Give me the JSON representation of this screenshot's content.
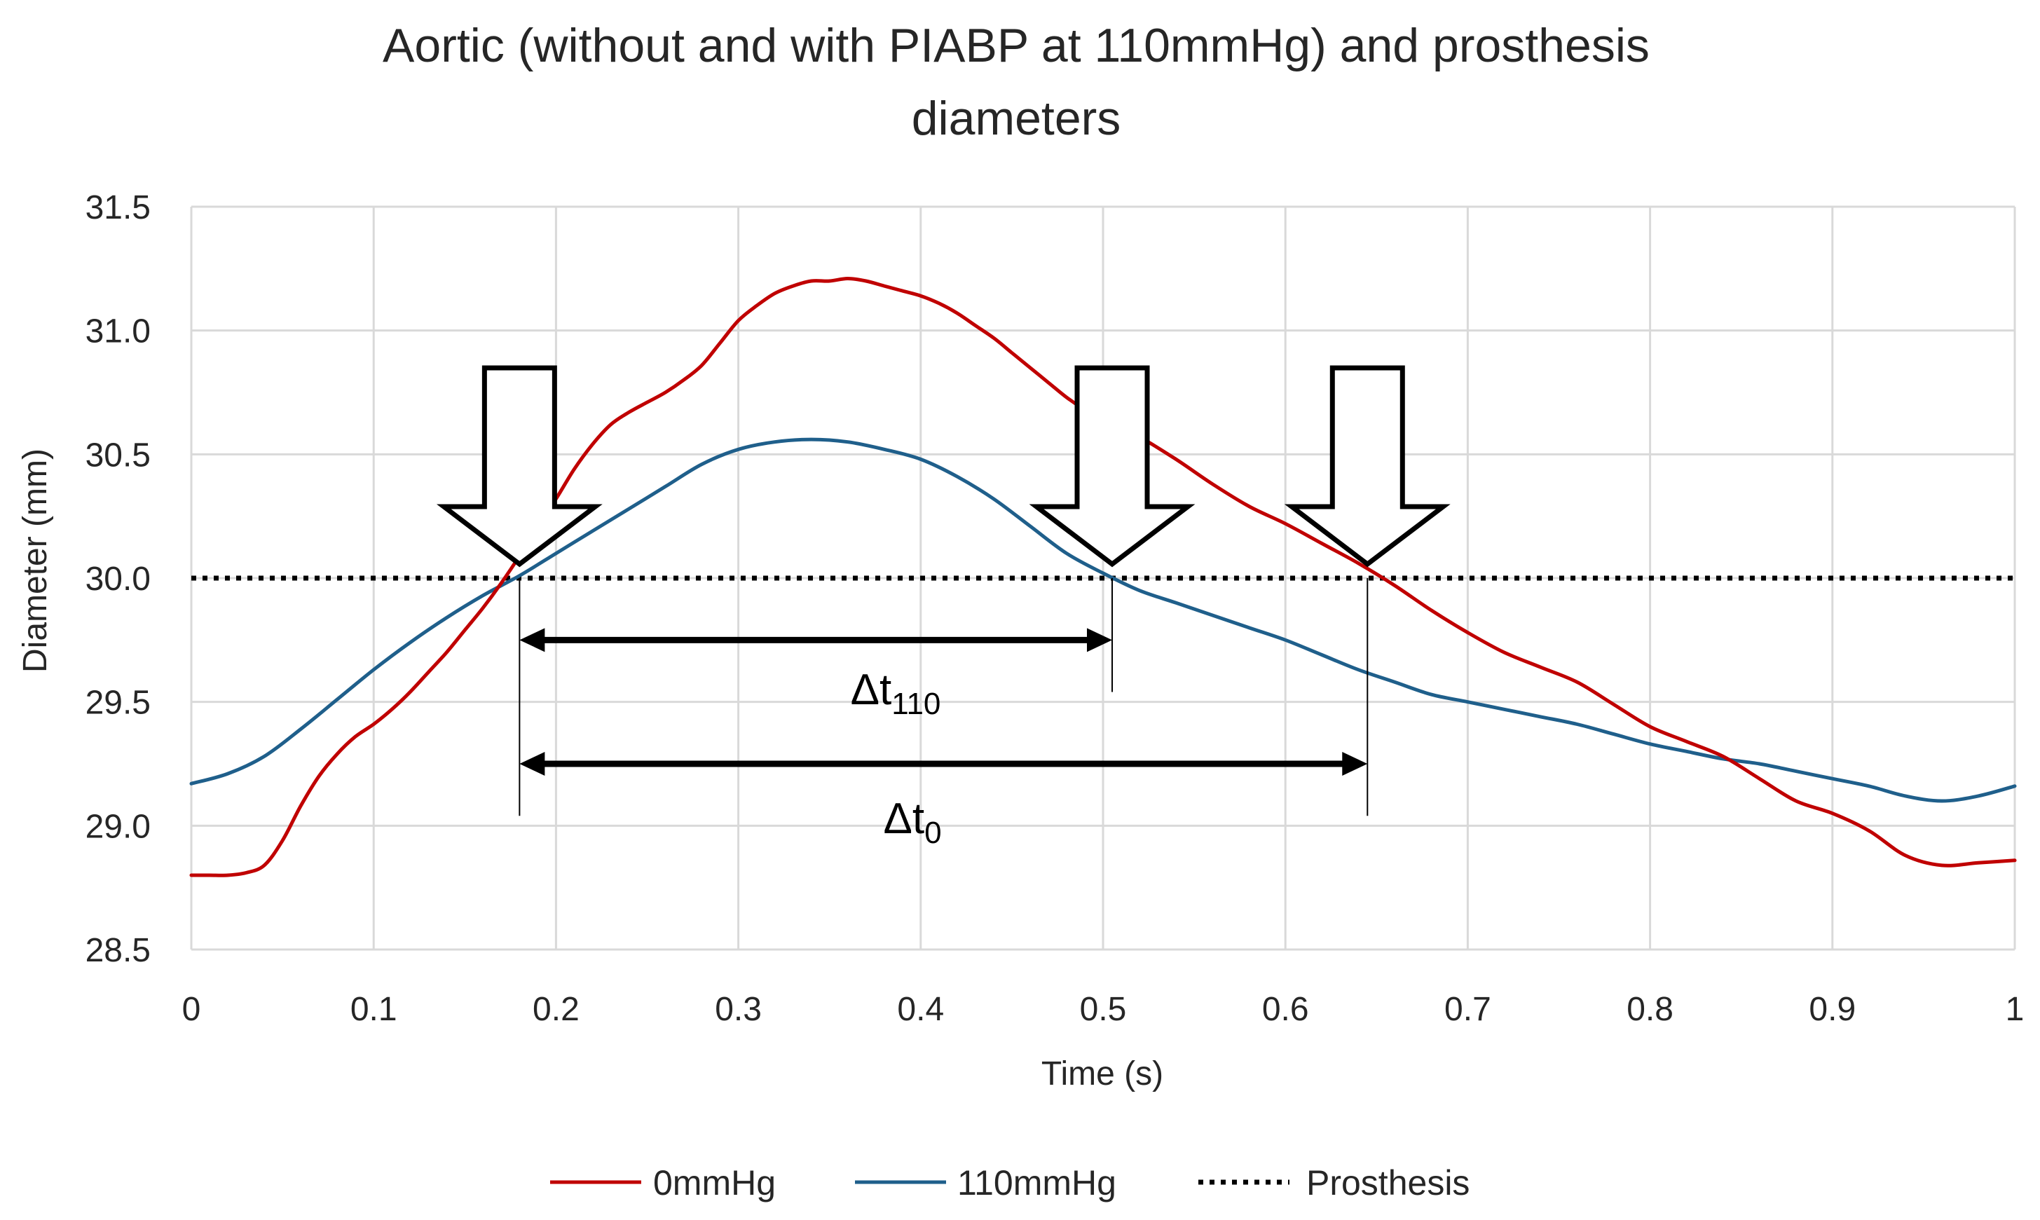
{
  "chart_data": {
    "type": "line",
    "title": {
      "line1": "Aortic (without and with PIABP at 110mmHg) and prosthesis",
      "line2": "diameters"
    },
    "xlabel": "Time (s)",
    "ylabel": "Diameter (mm)",
    "xlim": [
      0,
      1
    ],
    "ylim": [
      28.5,
      31.5
    ],
    "x_ticks": [
      "0",
      "0.1",
      "0.2",
      "0.3",
      "0.4",
      "0.5",
      "0.6",
      "0.7",
      "0.8",
      "0.9",
      "1"
    ],
    "y_ticks": [
      "28.5",
      "29.0",
      "29.5",
      "30.0",
      "30.5",
      "31.0",
      "31.5"
    ],
    "grid": true,
    "legend_position": "bottom",
    "series": [
      {
        "name": "0mmHg",
        "color": "#c00000",
        "style": "solid",
        "x": [
          0,
          0.01,
          0.02,
          0.03,
          0.04,
          0.05,
          0.06,
          0.07,
          0.08,
          0.09,
          0.1,
          0.11,
          0.12,
          0.13,
          0.14,
          0.15,
          0.16,
          0.17,
          0.18,
          0.19,
          0.2,
          0.21,
          0.22,
          0.23,
          0.24,
          0.25,
          0.26,
          0.27,
          0.28,
          0.29,
          0.3,
          0.31,
          0.32,
          0.33,
          0.34,
          0.35,
          0.36,
          0.37,
          0.38,
          0.39,
          0.4,
          0.41,
          0.42,
          0.43,
          0.44,
          0.45,
          0.46,
          0.47,
          0.48,
          0.49,
          0.5,
          0.52,
          0.54,
          0.56,
          0.58,
          0.6,
          0.62,
          0.64,
          0.66,
          0.68,
          0.7,
          0.72,
          0.74,
          0.76,
          0.78,
          0.8,
          0.82,
          0.84,
          0.86,
          0.88,
          0.9,
          0.92,
          0.94,
          0.96,
          0.98,
          1.0
        ],
        "y": [
          28.8,
          28.8,
          28.8,
          28.81,
          28.84,
          28.94,
          29.08,
          29.2,
          29.29,
          29.36,
          29.41,
          29.47,
          29.54,
          29.62,
          29.7,
          29.79,
          29.88,
          29.98,
          30.09,
          30.21,
          30.32,
          30.44,
          30.54,
          30.62,
          30.67,
          30.71,
          30.75,
          30.8,
          30.86,
          30.95,
          31.04,
          31.1,
          31.15,
          31.18,
          31.2,
          31.2,
          31.21,
          31.2,
          31.18,
          31.16,
          31.14,
          31.11,
          31.07,
          31.02,
          30.97,
          30.91,
          30.85,
          30.79,
          30.73,
          30.68,
          30.64,
          30.57,
          30.48,
          30.38,
          30.29,
          30.22,
          30.14,
          30.06,
          29.97,
          29.87,
          29.78,
          29.7,
          29.64,
          29.58,
          29.49,
          29.4,
          29.34,
          29.28,
          29.19,
          29.1,
          29.05,
          28.98,
          28.88,
          28.84,
          28.85,
          28.86
        ]
      },
      {
        "name": "110mmHg",
        "color": "#1f5f8b",
        "style": "solid",
        "x": [
          0,
          0.02,
          0.04,
          0.06,
          0.08,
          0.1,
          0.12,
          0.14,
          0.16,
          0.18,
          0.2,
          0.22,
          0.24,
          0.26,
          0.28,
          0.3,
          0.32,
          0.34,
          0.36,
          0.38,
          0.4,
          0.42,
          0.44,
          0.46,
          0.48,
          0.5,
          0.52,
          0.54,
          0.56,
          0.58,
          0.6,
          0.62,
          0.64,
          0.66,
          0.68,
          0.7,
          0.72,
          0.74,
          0.76,
          0.78,
          0.8,
          0.82,
          0.84,
          0.86,
          0.88,
          0.9,
          0.92,
          0.94,
          0.96,
          0.98,
          1.0
        ],
        "y": [
          29.17,
          29.21,
          29.28,
          29.39,
          29.51,
          29.63,
          29.74,
          29.84,
          29.93,
          30.01,
          30.1,
          30.19,
          30.28,
          30.37,
          30.46,
          30.52,
          30.55,
          30.56,
          30.55,
          30.52,
          30.48,
          30.41,
          30.32,
          30.21,
          30.1,
          30.02,
          29.95,
          29.9,
          29.85,
          29.8,
          29.75,
          29.69,
          29.63,
          29.58,
          29.53,
          29.5,
          29.47,
          29.44,
          29.41,
          29.37,
          29.33,
          29.3,
          29.27,
          29.25,
          29.22,
          29.19,
          29.16,
          29.12,
          29.1,
          29.12,
          29.16
        ]
      },
      {
        "name": "Prosthesis",
        "color": "#000000",
        "style": "dotted",
        "x": [
          0,
          1
        ],
        "y": [
          30.0,
          30.0
        ]
      }
    ],
    "annotations": {
      "arrows_at_x": [
        0.18,
        0.505,
        0.645
      ],
      "intersection_y": 30.0,
      "delta_110": {
        "from": 0.18,
        "to": 0.505,
        "y": 29.75,
        "label": "Δt",
        "sub": "110"
      },
      "delta_0": {
        "from": 0.18,
        "to": 0.645,
        "y": 29.25,
        "label": "Δt",
        "sub": "0"
      }
    }
  }
}
